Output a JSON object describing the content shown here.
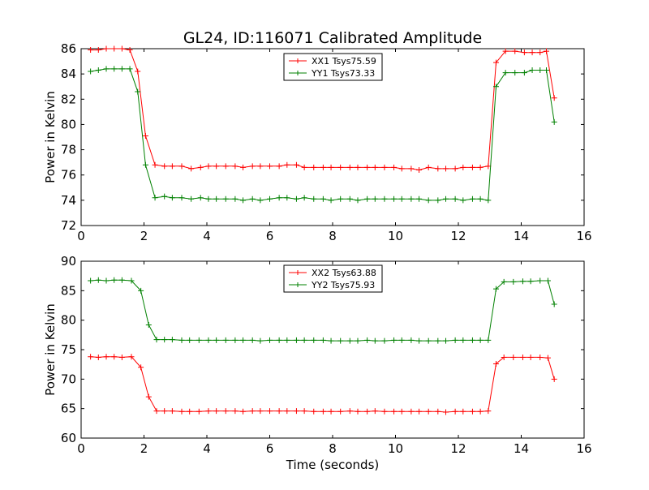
{
  "figure": {
    "title": "GL24, ID:116071 Calibrated Amplitude"
  },
  "chart_data": [
    {
      "type": "line",
      "title": "GL24, ID:116071 Calibrated Amplitude",
      "xlabel": "",
      "ylabel": "Power in Kelvin",
      "xlim": [
        0,
        16
      ],
      "ylim": [
        72,
        86
      ],
      "xticks": [
        "0",
        "2",
        "4",
        "6",
        "8",
        "10",
        "12",
        "14",
        "16"
      ],
      "yticks": [
        "72",
        "74",
        "76",
        "78",
        "80",
        "82",
        "84",
        "86"
      ],
      "grid": false,
      "legend_position": "top-center",
      "x": [
        0.3,
        0.55,
        0.8,
        1.05,
        1.3,
        1.55,
        1.8,
        2.05,
        2.35,
        2.65,
        2.9,
        3.2,
        3.5,
        3.8,
        4.05,
        4.3,
        4.6,
        4.9,
        5.15,
        5.45,
        5.7,
        6.0,
        6.3,
        6.55,
        6.85,
        7.1,
        7.4,
        7.7,
        7.95,
        8.25,
        8.55,
        8.8,
        9.1,
        9.35,
        9.65,
        9.95,
        10.2,
        10.5,
        10.75,
        11.05,
        11.35,
        11.6,
        11.9,
        12.15,
        12.45,
        12.7,
        12.95,
        13.2,
        13.5,
        13.8,
        14.1,
        14.35,
        14.6,
        14.8,
        15.05
      ],
      "series": [
        {
          "name": "XX1 Tsys75.59",
          "color": "#ff0000",
          "values": [
            85.9,
            85.9,
            86.0,
            86.0,
            86.0,
            85.9,
            84.2,
            79.1,
            76.8,
            76.7,
            76.7,
            76.7,
            76.5,
            76.6,
            76.7,
            76.7,
            76.7,
            76.7,
            76.6,
            76.7,
            76.7,
            76.7,
            76.7,
            76.8,
            76.8,
            76.6,
            76.6,
            76.6,
            76.6,
            76.6,
            76.6,
            76.6,
            76.6,
            76.6,
            76.6,
            76.6,
            76.5,
            76.5,
            76.4,
            76.6,
            76.5,
            76.5,
            76.5,
            76.6,
            76.6,
            76.6,
            76.7,
            84.9,
            85.8,
            85.8,
            85.7,
            85.7,
            85.7,
            85.8,
            82.1
          ]
        },
        {
          "name": "YY1 Tsys73.33",
          "color": "#008000",
          "values": [
            84.2,
            84.3,
            84.4,
            84.4,
            84.4,
            84.4,
            82.6,
            76.8,
            74.2,
            74.3,
            74.2,
            74.2,
            74.1,
            74.2,
            74.1,
            74.1,
            74.1,
            74.1,
            74.0,
            74.1,
            74.0,
            74.1,
            74.2,
            74.2,
            74.1,
            74.2,
            74.1,
            74.1,
            74.0,
            74.1,
            74.1,
            74.0,
            74.1,
            74.1,
            74.1,
            74.1,
            74.1,
            74.1,
            74.1,
            74.0,
            74.0,
            74.1,
            74.1,
            74.0,
            74.1,
            74.1,
            74.0,
            83.0,
            84.1,
            84.1,
            84.1,
            84.3,
            84.3,
            84.3,
            80.2
          ]
        }
      ]
    },
    {
      "type": "line",
      "title": "",
      "xlabel": "Time (seconds)",
      "ylabel": "Power in Kelvin",
      "xlim": [
        0,
        16
      ],
      "ylim": [
        60,
        90
      ],
      "xticks": [
        "0",
        "2",
        "4",
        "6",
        "8",
        "10",
        "12",
        "14",
        "16"
      ],
      "yticks": [
        "60",
        "65",
        "70",
        "75",
        "80",
        "85",
        "90"
      ],
      "grid": false,
      "legend_position": "top-center",
      "x": [
        0.3,
        0.55,
        0.8,
        1.05,
        1.3,
        1.6,
        1.9,
        2.15,
        2.4,
        2.65,
        2.9,
        3.2,
        3.45,
        3.75,
        4.05,
        4.3,
        4.6,
        4.9,
        5.15,
        5.45,
        5.7,
        6.0,
        6.3,
        6.55,
        6.85,
        7.1,
        7.4,
        7.7,
        7.95,
        8.25,
        8.55,
        8.8,
        9.1,
        9.35,
        9.65,
        9.95,
        10.2,
        10.5,
        10.75,
        11.05,
        11.35,
        11.6,
        11.9,
        12.15,
        12.45,
        12.7,
        12.95,
        13.2,
        13.45,
        13.75,
        14.05,
        14.3,
        14.6,
        14.85,
        15.05
      ],
      "series": [
        {
          "name": "XX2 Tsys63.88",
          "color": "#ff0000",
          "values": [
            73.8,
            73.7,
            73.8,
            73.8,
            73.7,
            73.8,
            72.0,
            67.0,
            64.6,
            64.6,
            64.6,
            64.5,
            64.5,
            64.5,
            64.6,
            64.6,
            64.6,
            64.6,
            64.5,
            64.6,
            64.6,
            64.6,
            64.6,
            64.6,
            64.6,
            64.6,
            64.5,
            64.5,
            64.5,
            64.5,
            64.6,
            64.5,
            64.5,
            64.6,
            64.5,
            64.5,
            64.5,
            64.5,
            64.5,
            64.5,
            64.5,
            64.4,
            64.5,
            64.5,
            64.5,
            64.5,
            64.6,
            72.6,
            73.7,
            73.7,
            73.7,
            73.7,
            73.7,
            73.6,
            70.0
          ]
        },
        {
          "name": "YY2 Tsys75.93",
          "color": "#008000",
          "values": [
            86.7,
            86.8,
            86.7,
            86.8,
            86.8,
            86.7,
            85.0,
            79.2,
            76.7,
            76.7,
            76.7,
            76.6,
            76.6,
            76.6,
            76.6,
            76.6,
            76.6,
            76.6,
            76.6,
            76.6,
            76.5,
            76.6,
            76.6,
            76.6,
            76.6,
            76.6,
            76.6,
            76.6,
            76.5,
            76.5,
            76.5,
            76.5,
            76.6,
            76.5,
            76.5,
            76.6,
            76.6,
            76.6,
            76.5,
            76.5,
            76.5,
            76.5,
            76.6,
            76.6,
            76.6,
            76.6,
            76.6,
            85.3,
            86.5,
            86.5,
            86.6,
            86.6,
            86.7,
            86.7,
            82.7
          ]
        }
      ]
    }
  ]
}
